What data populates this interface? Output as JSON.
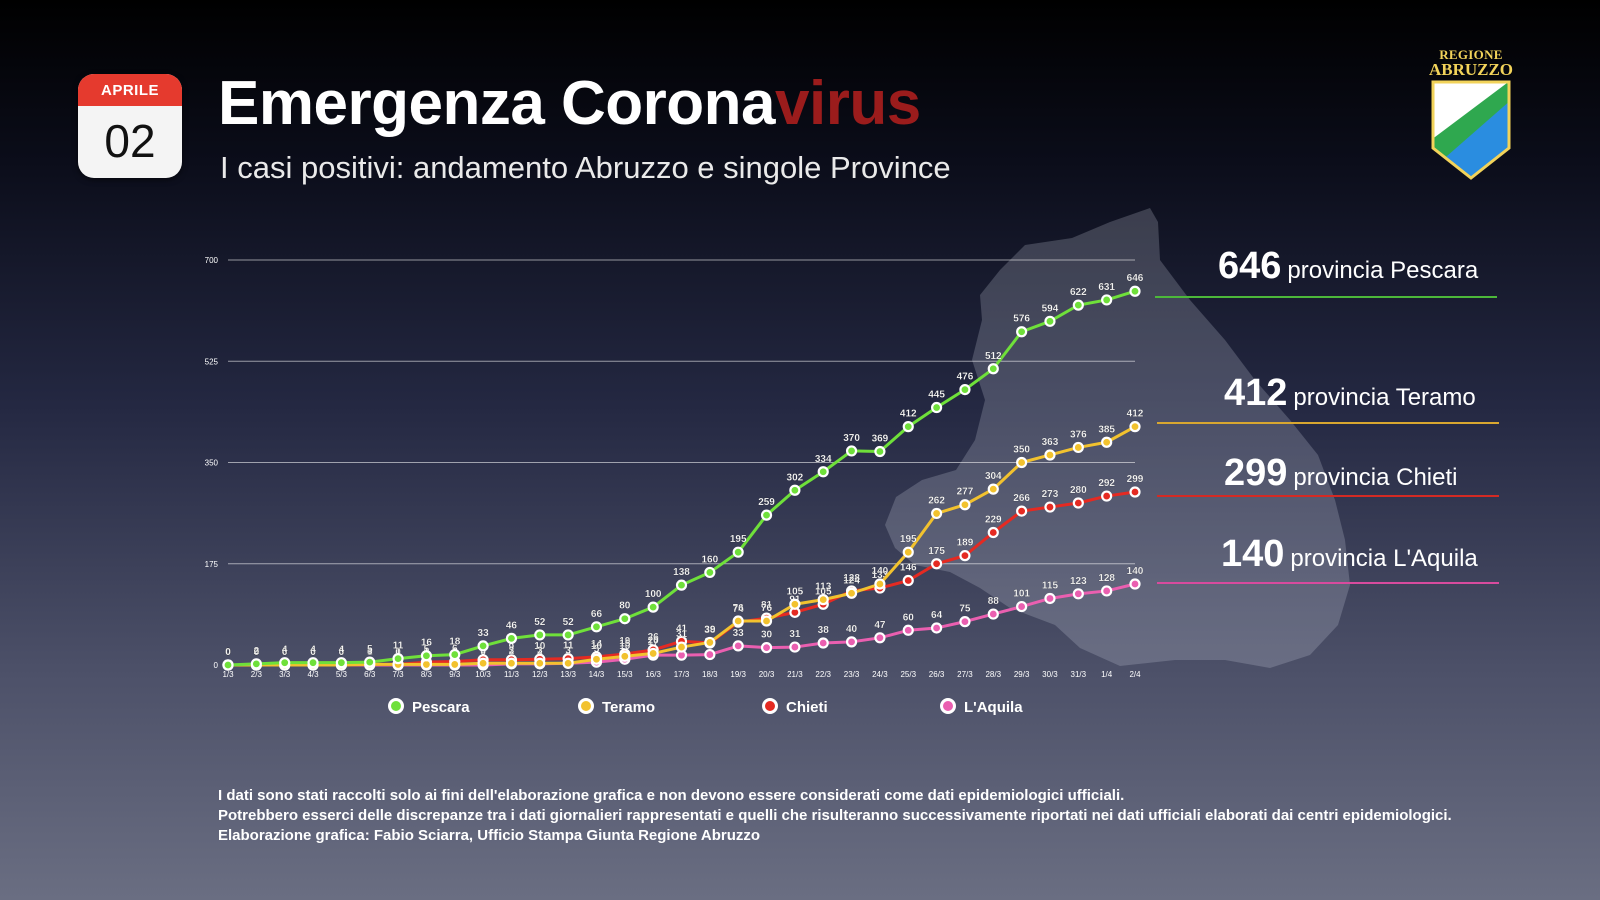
{
  "calendar": {
    "month": "APRILE",
    "day": "02"
  },
  "header": {
    "title_main": "Emergenza Corona",
    "title_highlight": "virus",
    "subtitle": "I casi positivi: andamento Abruzzo e singole Province"
  },
  "logo": {
    "line1": "REGIONE",
    "line2": "ABRUZZO"
  },
  "colors": {
    "Pescara": "#6fe03a",
    "Teramo": "#f2c22e",
    "Chieti": "#e52a22",
    "LAquila": "#ea5fb0",
    "title_accent": "#9b1c1c"
  },
  "callouts": [
    {
      "value": "646",
      "label": "provincia Pescara"
    },
    {
      "value": "412",
      "label": "provincia Teramo"
    },
    {
      "value": "299",
      "label": "provincia Chieti"
    },
    {
      "value": "140",
      "label": "provincia L'Aquila"
    }
  ],
  "chart_data": {
    "type": "line",
    "ylim": [
      0,
      700
    ],
    "yticks": [
      "0",
      "175",
      "350",
      "525",
      "700"
    ],
    "x": [
      "1/3",
      "2/3",
      "3/3",
      "4/3",
      "5/3",
      "6/3",
      "7/3",
      "8/3",
      "9/3",
      "10/3",
      "11/3",
      "12/3",
      "13/3",
      "14/3",
      "15/3",
      "16/3",
      "17/3",
      "18/3",
      "19/3",
      "20/3",
      "21/3",
      "22/3",
      "23/3",
      "24/3",
      "25/3",
      "26/3",
      "27/3",
      "28/3",
      "29/3",
      "30/3",
      "31/3",
      "1/4",
      "2/4"
    ],
    "grid": true,
    "legend_position": "bottom",
    "series": [
      {
        "name": "Pescara",
        "values": [
          0,
          2,
          4,
          4,
          4,
          5,
          11,
          16,
          18,
          33,
          46,
          52,
          52,
          66,
          80,
          100,
          138,
          160,
          195,
          259,
          302,
          334,
          370,
          369,
          412,
          445,
          476,
          512,
          576,
          594,
          622,
          631,
          646
        ]
      },
      {
        "name": "Teramo",
        "values": [
          0,
          0,
          0,
          0,
          0,
          1,
          1,
          1,
          1,
          3,
          3,
          3,
          3,
          10,
          15,
          20,
          31,
          39,
          76,
          76,
          105,
          113,
          124,
          140,
          195,
          262,
          277,
          304,
          350,
          363,
          376,
          385,
          412
        ]
      },
      {
        "name": "Chieti",
        "values": [
          0,
          0,
          0,
          0,
          0,
          1,
          1,
          5,
          6,
          9,
          9,
          10,
          11,
          14,
          19,
          26,
          41,
          38,
          74,
          81,
          91,
          105,
          128,
          133,
          146,
          175,
          189,
          229,
          266,
          273,
          280,
          292,
          299
        ]
      },
      {
        "name": "L'Aquila",
        "values": [
          0,
          0,
          0,
          0,
          0,
          0,
          0,
          0,
          0,
          0,
          2,
          2,
          3,
          5,
          10,
          17,
          17,
          18,
          33,
          30,
          31,
          38,
          40,
          47,
          60,
          64,
          75,
          88,
          101,
          115,
          123,
          128,
          140
        ]
      }
    ]
  },
  "legend": [
    "Pescara",
    "Teramo",
    "Chieti",
    "L'Aquila"
  ],
  "notes": [
    "I dati sono stati raccolti solo ai fini dell'elaborazione grafica e non devono essere considerati come dati epidemiologici ufficiali.",
    "Potrebbero esserci delle discrepanze tra i dati giornalieri rappresentati e quelli che risulteranno successivamente riportati nei dati ufficiali elaborati dai centri epidemiologici.",
    "Elaborazione grafica: Fabio Sciarra, Ufficio Stampa Giunta Regione Abruzzo"
  ]
}
